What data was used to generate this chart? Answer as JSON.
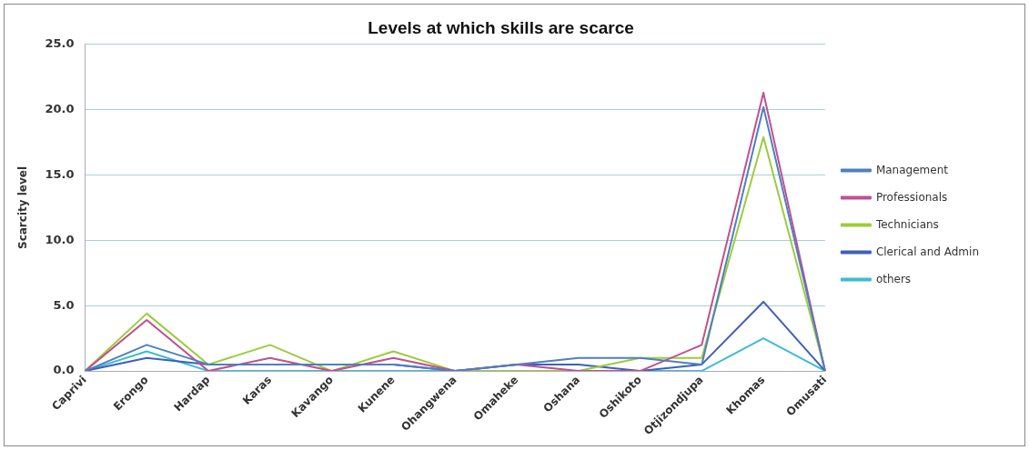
{
  "chart_data": {
    "type": "line",
    "title": "Levels at which skills are scarce",
    "ylabel": "Scarcity level",
    "categories": [
      "Caprivi",
      "Erongo",
      "Hardap",
      "Karas",
      "Kavango",
      "Kunene",
      "Ohangwena",
      "Omaheke",
      "Oshana",
      "Oshikoto",
      "Otjizondjupa",
      "Khomas",
      "Omusati"
    ],
    "series": [
      {
        "name": "Management",
        "color": "#4f7fc0",
        "values": [
          0,
          2.0,
          0.5,
          0.5,
          0.5,
          0.5,
          0,
          0.5,
          1.0,
          1.0,
          0.5,
          20.2,
          0
        ]
      },
      {
        "name": "Professionals",
        "color": "#c0508f",
        "values": [
          0,
          3.9,
          0,
          1.0,
          0,
          1.0,
          0,
          0.5,
          0,
          0,
          2.0,
          21.3,
          0
        ]
      },
      {
        "name": "Technicians",
        "color": "#9ccc3c",
        "values": [
          0,
          4.4,
          0.5,
          2.0,
          0,
          1.5,
          0,
          0,
          0,
          1.0,
          1.0,
          17.9,
          0
        ]
      },
      {
        "name": "Clerical and Admin",
        "color": "#3f5fb8",
        "values": [
          0,
          1.0,
          0.5,
          0.5,
          0.5,
          0.5,
          0,
          0.5,
          0.5,
          0,
          0.5,
          5.3,
          0
        ]
      },
      {
        "name": "others",
        "color": "#3cbcd4",
        "values": [
          0,
          1.5,
          0,
          0,
          0,
          0,
          0,
          0,
          0,
          0,
          0,
          2.5,
          0
        ]
      }
    ],
    "ylim": [
      0,
      25
    ],
    "yticks": [
      {
        "value": 0,
        "label": "0.0"
      },
      {
        "value": 5,
        "label": "5.0"
      },
      {
        "value": 10,
        "label": "10.0"
      },
      {
        "value": 15,
        "label": "15.0"
      },
      {
        "value": 20,
        "label": "20.0"
      },
      {
        "value": 25,
        "label": "25.0"
      }
    ],
    "grid": "y",
    "legend": "right",
    "marker": "none",
    "line_style": "solid"
  }
}
